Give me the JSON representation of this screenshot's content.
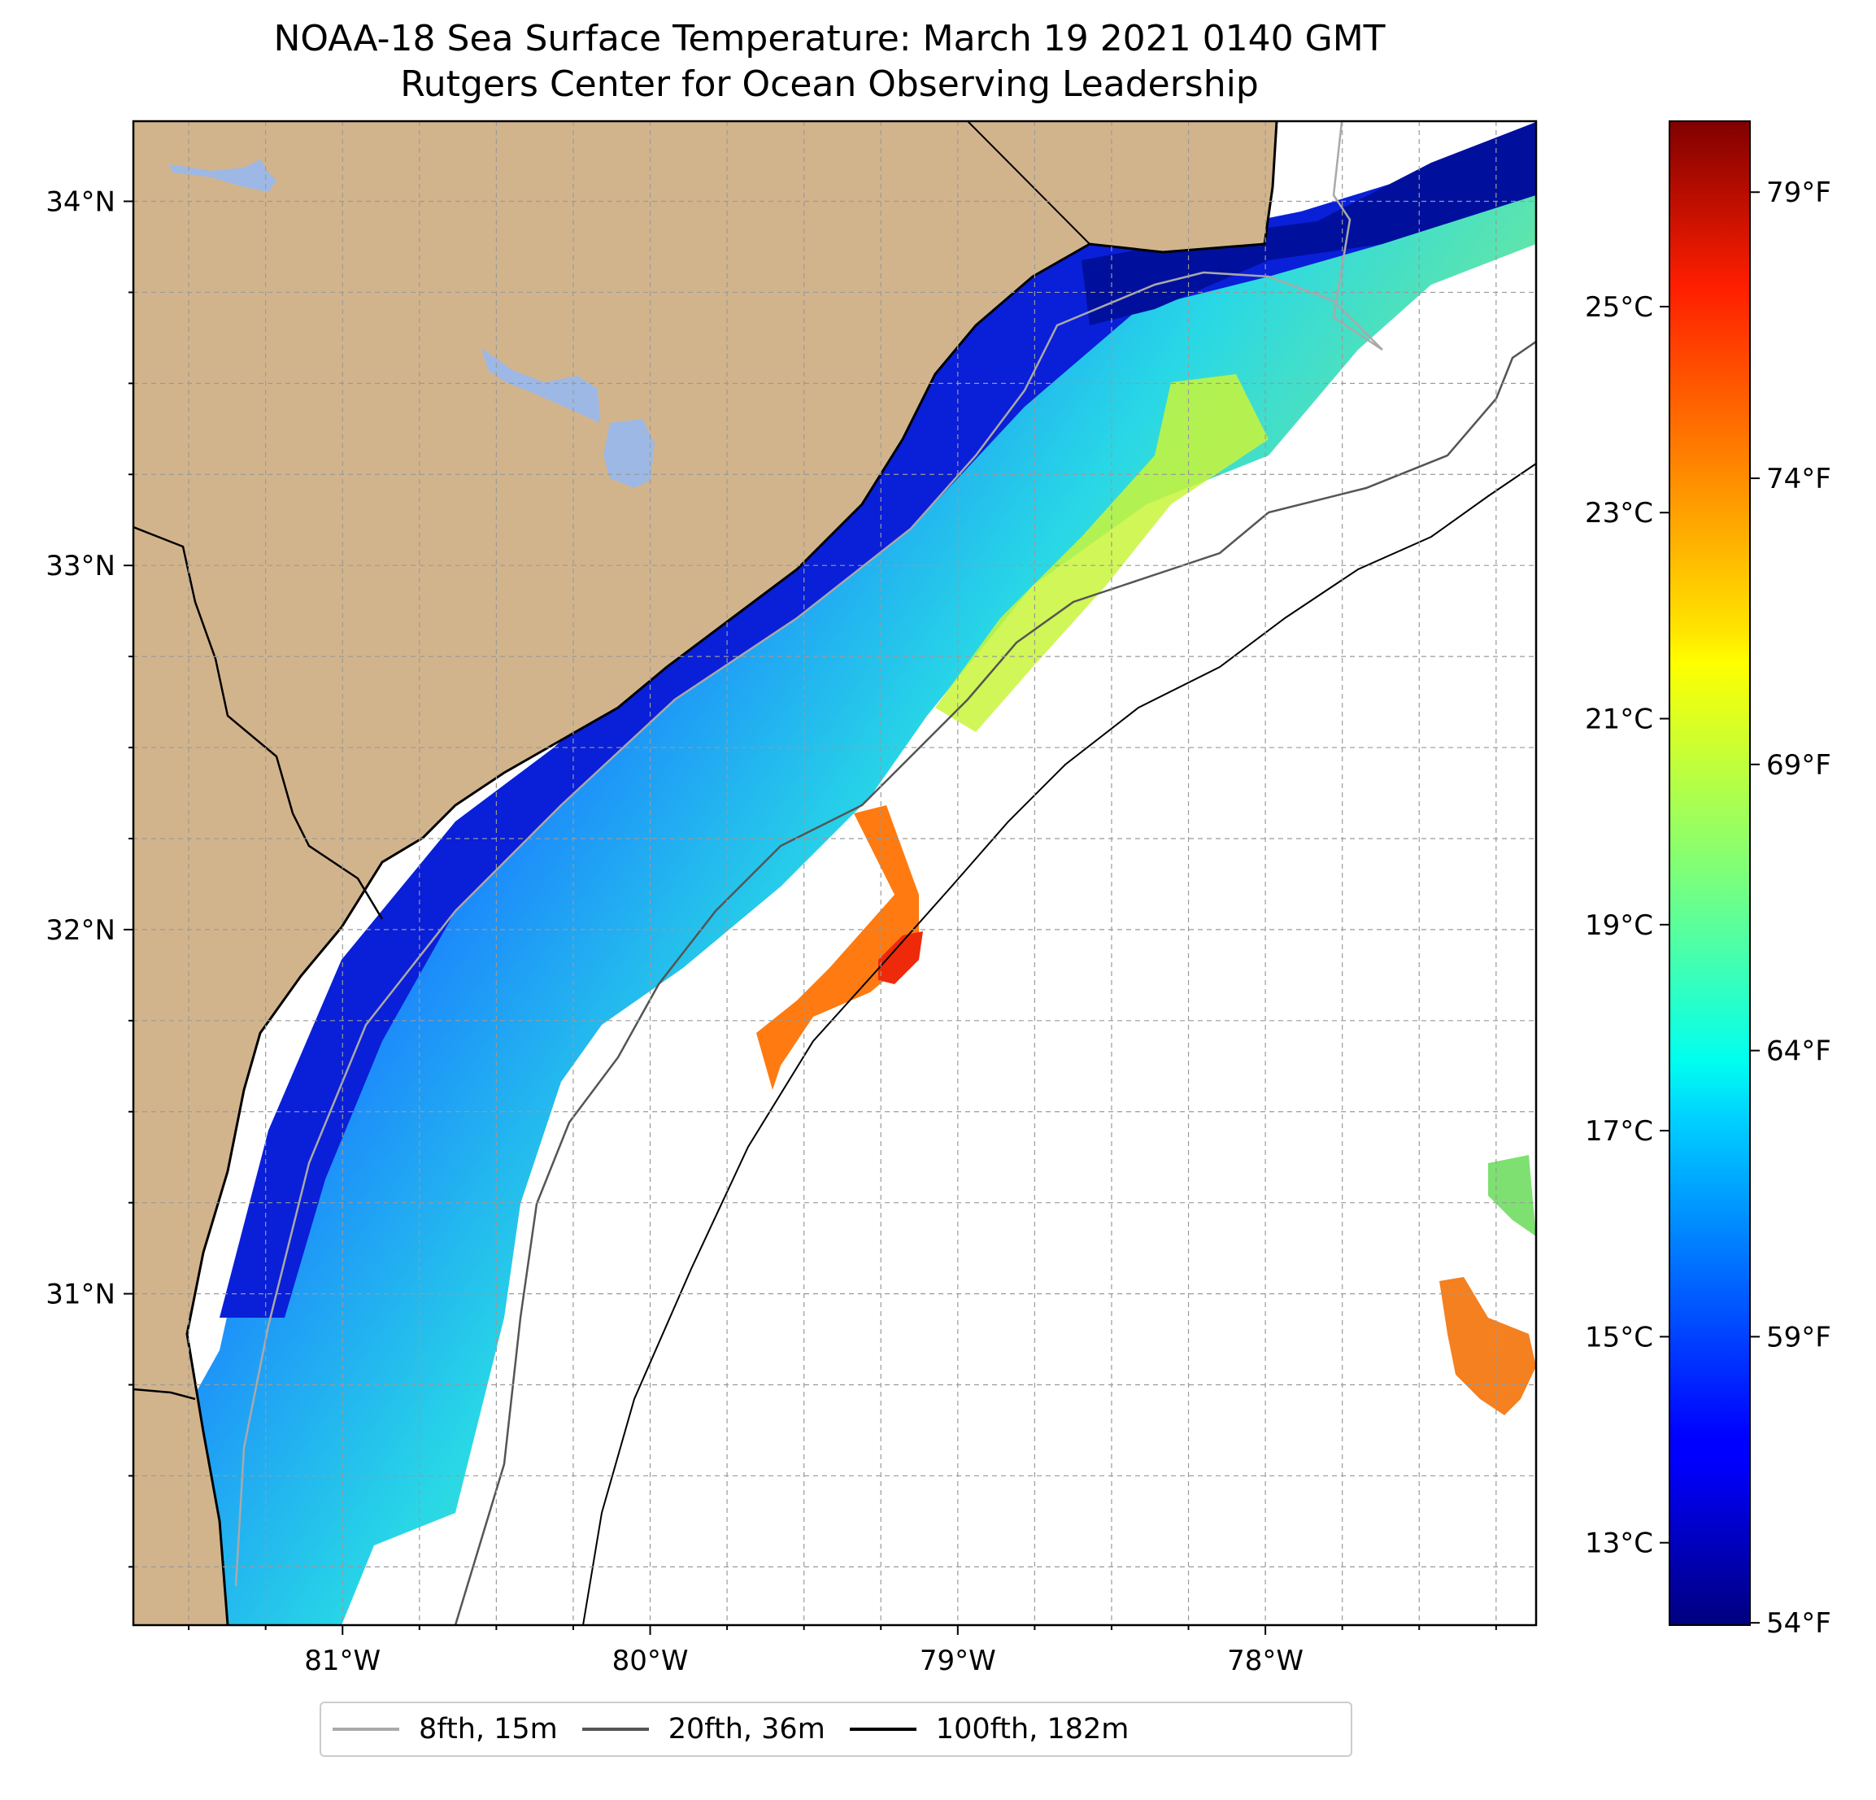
{
  "title": {
    "line1": "NOAA-18 Sea Surface Temperature: March 19 2021 0140 GMT",
    "line2": "Rutgers Center for Ocean Observing Leadership"
  },
  "map": {
    "lon_range": [
      -81.68,
      -77.12
    ],
    "lat_range": [
      30.09,
      34.22
    ],
    "lon_ticks": [
      {
        "value": -81,
        "label": "81°W"
      },
      {
        "value": -80,
        "label": "80°W"
      },
      {
        "value": -79,
        "label": "79°W"
      },
      {
        "value": -78,
        "label": "78°W"
      }
    ],
    "lat_ticks": [
      {
        "value": 34,
        "label": "34°N"
      },
      {
        "value": 33,
        "label": "33°N"
      },
      {
        "value": 32,
        "label": "32°N"
      },
      {
        "value": 31,
        "label": "31°N"
      }
    ],
    "land_color": "#D2B48C",
    "lake_color": "#9DB8E4",
    "grid": true
  },
  "colorbar": {
    "colormap": "jet",
    "celsius_range": [
      12.2,
      26.8
    ],
    "celsius_ticks": [
      {
        "value": 13,
        "label": "13°C"
      },
      {
        "value": 15,
        "label": "15°C"
      },
      {
        "value": 17,
        "label": "17°C"
      },
      {
        "value": 19,
        "label": "19°C"
      },
      {
        "value": 21,
        "label": "21°C"
      },
      {
        "value": 23,
        "label": "23°C"
      },
      {
        "value": 25,
        "label": "25°C"
      }
    ],
    "fahrenheit_ticks": [
      {
        "value": 54,
        "label": "54°F"
      },
      {
        "value": 59,
        "label": "59°F"
      },
      {
        "value": 64,
        "label": "64°F"
      },
      {
        "value": 69,
        "label": "69°F"
      },
      {
        "value": 74,
        "label": "74°F"
      },
      {
        "value": 79,
        "label": "79°F"
      }
    ]
  },
  "legend": {
    "items": [
      {
        "label": "8fth, 15m",
        "color": "#aaaaaa"
      },
      {
        "label": "20fth, 36m",
        "color": "#555555"
      },
      {
        "label": "100fth, 182m",
        "color": "#000000"
      }
    ]
  }
}
